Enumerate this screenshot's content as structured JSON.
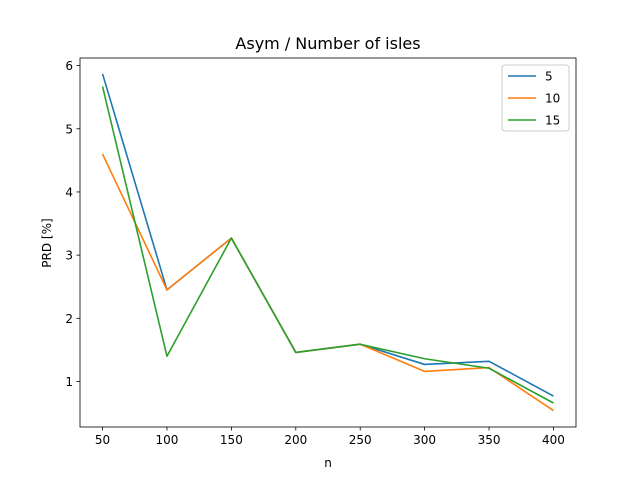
{
  "chart_data": {
    "type": "line",
    "title": "Asym / Number of isles",
    "xlabel": "n",
    "ylabel": "PRD [%]",
    "x": [
      50,
      100,
      150,
      200,
      250,
      300,
      350,
      400
    ],
    "xticks": [
      50,
      100,
      150,
      200,
      250,
      300,
      350,
      400
    ],
    "yticks": [
      1,
      2,
      3,
      4,
      5,
      6
    ],
    "xlim": [
      32.5,
      417.5
    ],
    "ylim": [
      0.28,
      6.12
    ],
    "grid": false,
    "legend_position": "top-right",
    "series": [
      {
        "name": "5",
        "color": "#1f77b4",
        "values": [
          5.87,
          2.45,
          3.27,
          1.46,
          1.59,
          1.27,
          1.32,
          0.77
        ]
      },
      {
        "name": "10",
        "color": "#ff7f0e",
        "values": [
          4.6,
          2.45,
          3.27,
          1.46,
          1.59,
          1.16,
          1.22,
          0.54
        ]
      },
      {
        "name": "15",
        "color": "#2ca02c",
        "values": [
          5.67,
          1.4,
          3.27,
          1.46,
          1.59,
          1.36,
          1.21,
          0.66
        ]
      }
    ]
  }
}
